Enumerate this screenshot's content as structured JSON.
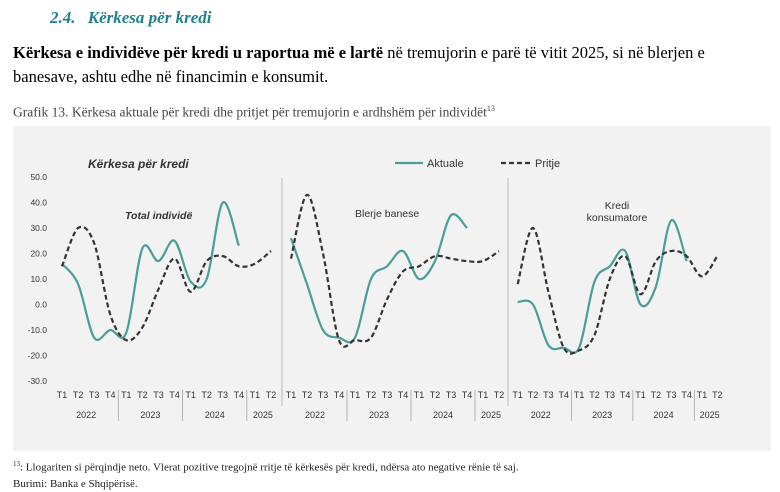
{
  "section": {
    "number": "2.4.",
    "title": "Kërkesa për kredi"
  },
  "paragraph": {
    "bold": "Kërkesa e individëve për kredi u raportua më e lartë",
    "rest": " në tremujorin e parë të vitit 2025, si në blerjen e banesave, ashtu edhe në financimin e konsumit."
  },
  "caption": {
    "text": "Grafik 13. Kërkesa aktuale për kredi dhe pritjet për tremujorin e ardhshëm për individët",
    "sup": "13"
  },
  "footnote": {
    "sup": "13",
    "text": ": Llogariten si përqindje neto. Vlerat pozitive tregojnë rritje të kërkesës për kredi, ndërsa ato negative rënie të saj.",
    "source": "Burimi: Banka e Shqipërisë."
  },
  "chart_data": {
    "type": "line",
    "title": "Kërkesa për kredi",
    "ylim": [
      -30,
      50
    ],
    "yticks": [
      "50.0",
      "40.0",
      "30.0",
      "20.0",
      "10.0",
      "0.0",
      "-10.0",
      "-20.0",
      "-30.0"
    ],
    "legend": {
      "position": "top",
      "items": [
        "Aktuale",
        "Pritje"
      ]
    },
    "colors": {
      "actual": "#4a9e9a",
      "expected": "#333333"
    },
    "quarter_labels": [
      "T1",
      "T2",
      "T3",
      "T4",
      "T1",
      "T2",
      "T3",
      "T4",
      "T1",
      "T2",
      "T3",
      "T4",
      "T1",
      "T2"
    ],
    "year_labels": [
      "2022",
      "2023",
      "2024",
      "2025"
    ],
    "panels": [
      {
        "label": "Total individë",
        "series": [
          {
            "name": "Aktuale",
            "values": [
              16,
              8,
              -13,
              -10,
              -11,
              22,
              17,
              25,
              9,
              10,
              40,
              23
            ]
          },
          {
            "name": "Pritje",
            "values": [
              15,
              30,
              24,
              -4,
              -14,
              -9,
              6,
              18,
              5,
              17,
              19,
              15,
              16,
              21
            ]
          }
        ]
      },
      {
        "label": "Blerje banese",
        "series": [
          {
            "name": "Aktuale",
            "values": [
              26,
              8,
              -10,
              -13,
              -13,
              10,
              15,
              21,
              10,
              17,
              35,
              30
            ]
          },
          {
            "name": "Pritje",
            "values": [
              18,
              43,
              20,
              -14,
              -14,
              -13,
              2,
              13,
              15,
              19,
              18,
              17,
              17,
              21
            ]
          }
        ]
      },
      {
        "label": "Kredi konsumatore",
        "series": [
          {
            "name": "Aktuale",
            "values": [
              1,
              0,
              -16,
              -17,
              -17,
              9,
              15,
              21,
              0,
              7,
              33,
              17
            ]
          },
          {
            "name": "Pritje",
            "values": [
              8,
              30,
              5,
              -17,
              -18,
              -12,
              10,
              19,
              4,
              17,
              21,
              19,
              11,
              19
            ]
          }
        ]
      }
    ]
  }
}
